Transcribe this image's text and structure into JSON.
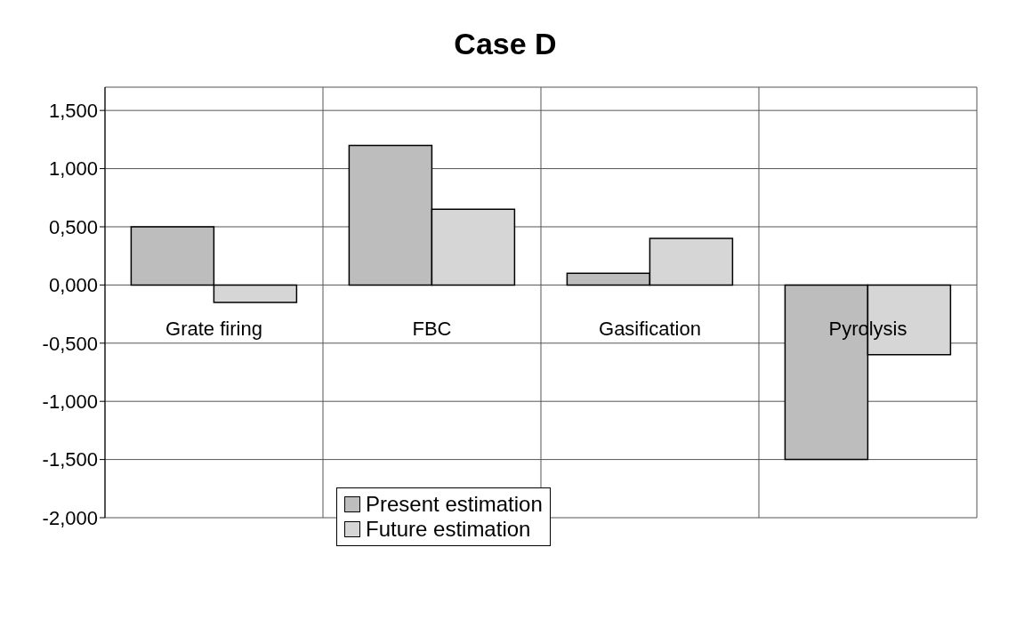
{
  "chart_data": {
    "type": "bar",
    "title": "Case D",
    "categories": [
      "Grate firing",
      "FBC",
      "Gasification",
      "Pyrolysis"
    ],
    "series": [
      {
        "name": "Present estimation",
        "color": "#bdbdbd",
        "values": [
          0.5,
          1.2,
          0.1,
          -1.5
        ]
      },
      {
        "name": "Future estimation",
        "color": "#d6d6d6",
        "values": [
          -0.15,
          0.65,
          0.4,
          -0.6
        ]
      }
    ],
    "ylim": [
      -2,
      1.7
    ],
    "yticks": [
      {
        "value": -2,
        "label": "-2,000"
      },
      {
        "value": -1.5,
        "label": "-1,500"
      },
      {
        "value": -1,
        "label": "-1,000"
      },
      {
        "value": -0.5,
        "label": "-0,500"
      },
      {
        "value": 0,
        "label": "0,000"
      },
      {
        "value": 0.5,
        "label": "0,500"
      },
      {
        "value": 1,
        "label": "1,000"
      },
      {
        "value": 1.5,
        "label": "1,500"
      }
    ],
    "grid": true,
    "legend": "bottom"
  }
}
